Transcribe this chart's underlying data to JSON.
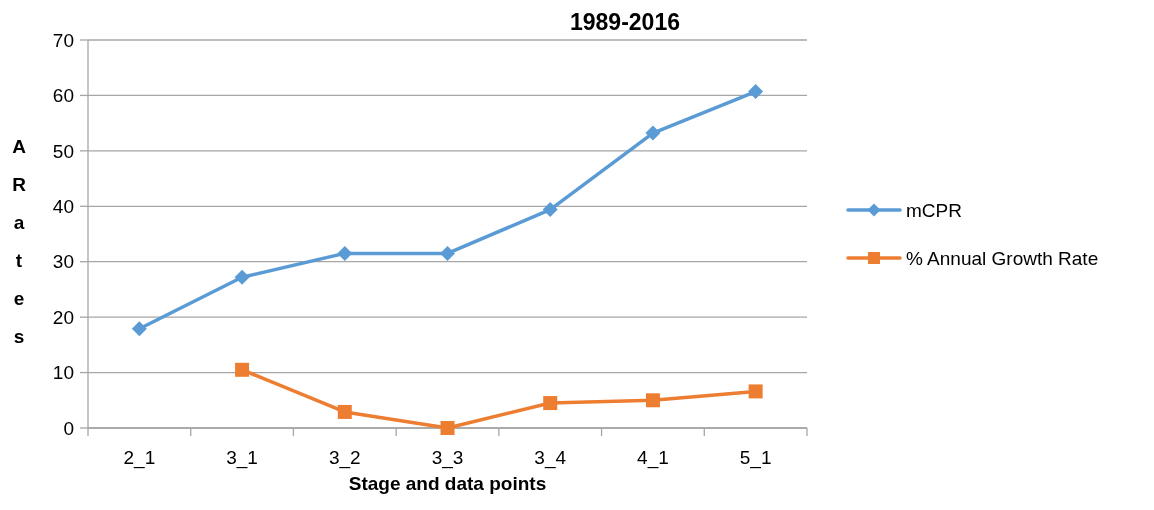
{
  "chart_data": {
    "type": "line",
    "title": "1989-2016",
    "xlabel": "Stage and data points",
    "ylabel": "ARates",
    "categories": [
      "2_1",
      "3_1",
      "3_2",
      "3_3",
      "3_4",
      "4_1",
      "5_1"
    ],
    "series": [
      {
        "name": "mCPR",
        "color": "#5b9bd5",
        "marker": "diamond",
        "values": [
          17.9,
          27.2,
          31.5,
          31.5,
          39.4,
          53.2,
          60.7
        ]
      },
      {
        "name": "% Annual Growth Rate",
        "color": "#ed7d31",
        "marker": "square",
        "values": [
          null,
          10.5,
          2.9,
          0,
          4.5,
          5.0,
          6.6
        ]
      }
    ],
    "ylim": [
      0,
      70
    ],
    "yticks": [
      0,
      10,
      20,
      30,
      40,
      50,
      60,
      70
    ],
    "grid": "y",
    "legend": "right"
  }
}
